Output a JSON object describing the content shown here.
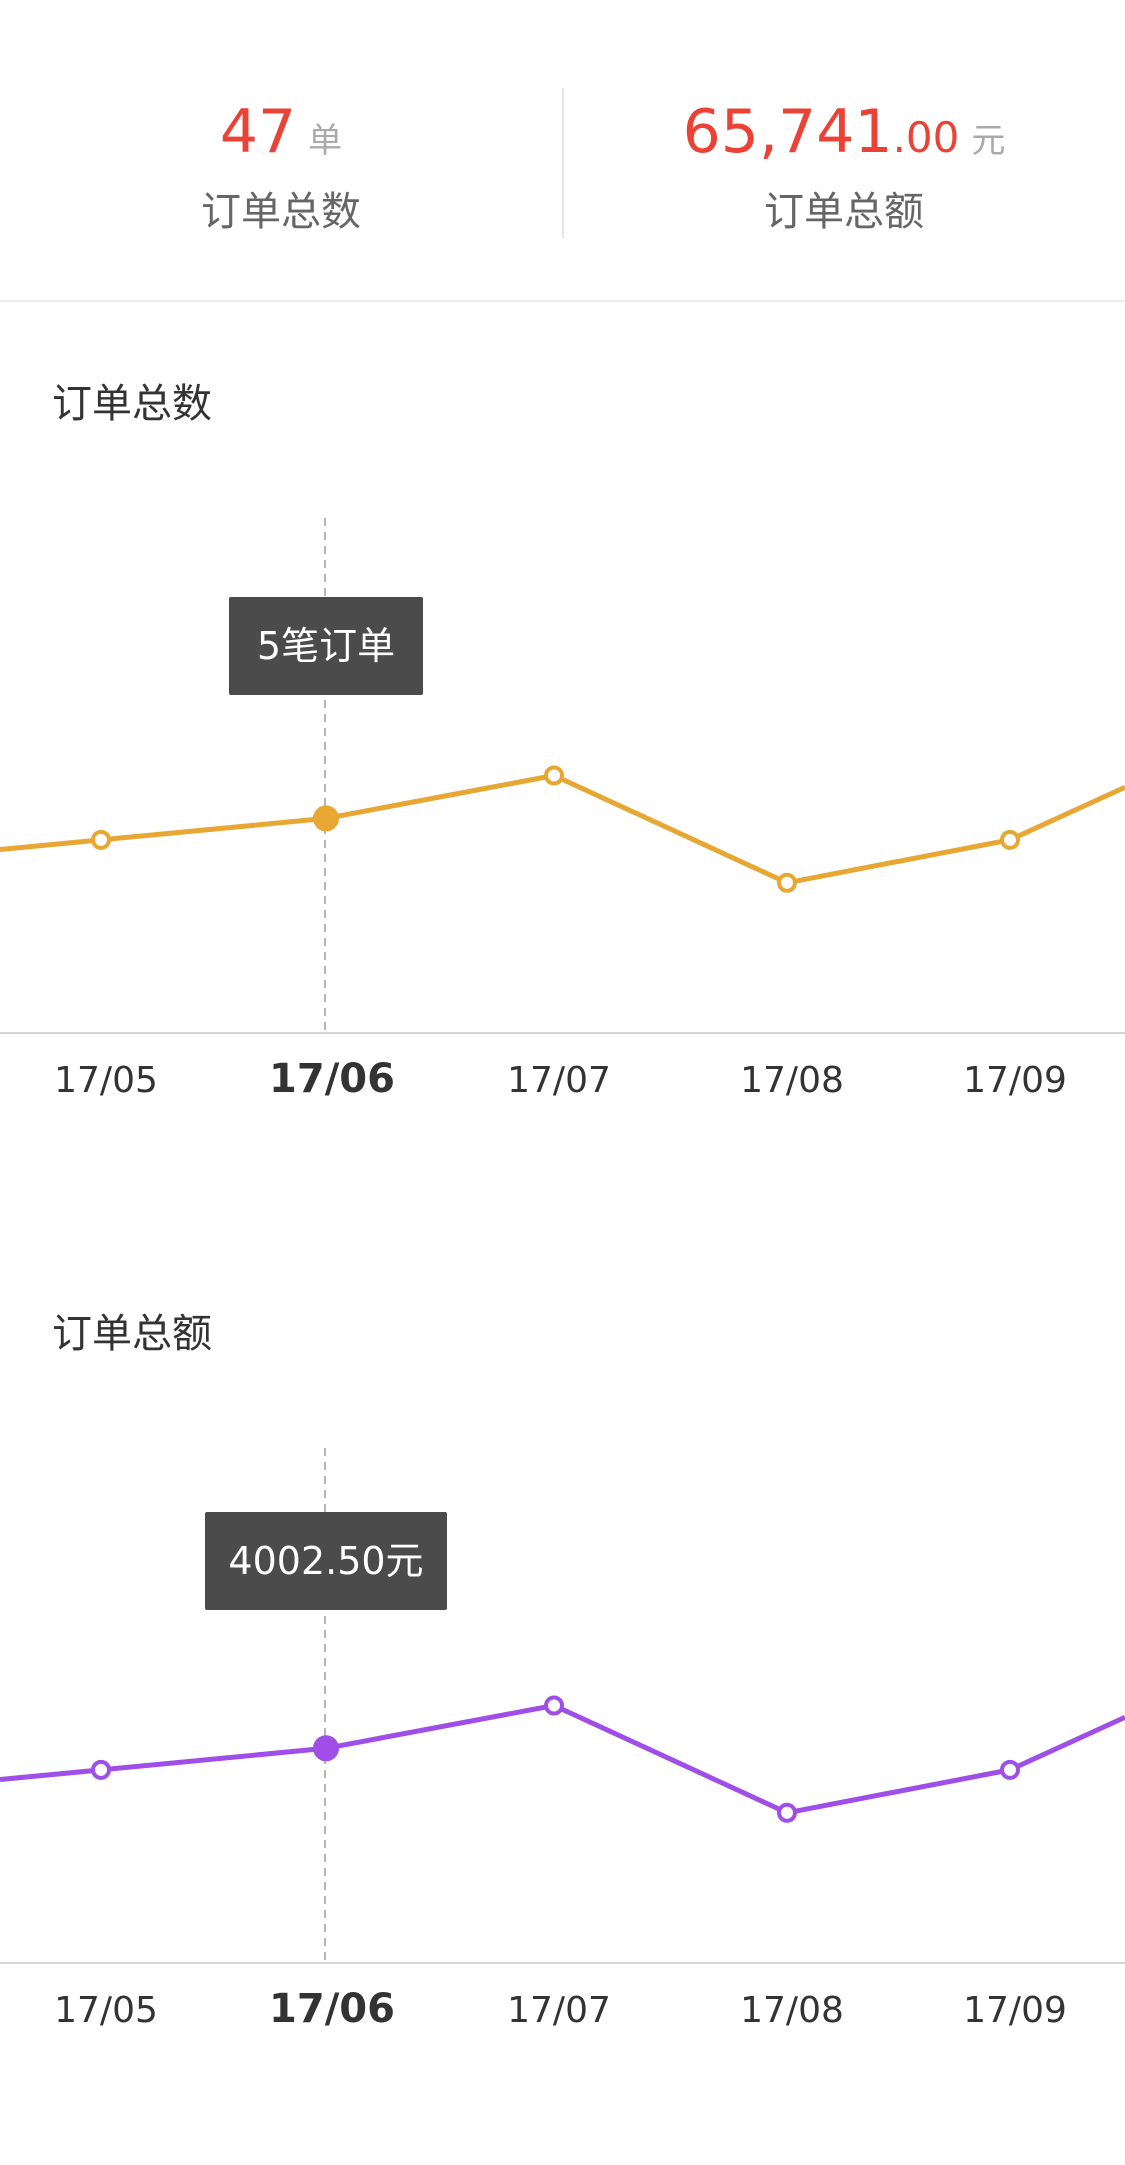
{
  "summary": {
    "orders": {
      "value": "47",
      "unit": "单",
      "label": "订单总数"
    },
    "amount": {
      "integer": "65,741",
      "decimal": ".00",
      "unit": "元",
      "label": "订单总额"
    }
  },
  "colors": {
    "highlight_red": "#ea4335",
    "orders_line": "#e8a732",
    "amount_line": "#a04ee8"
  },
  "charts": {
    "orders": {
      "title": "订单总数",
      "tooltip": "5笔订单"
    },
    "amount": {
      "title": "订单总额",
      "tooltip": "4002.50元"
    }
  },
  "chart_data": [
    {
      "type": "line",
      "title": "订单总数",
      "categories": [
        "17/05",
        "17/06",
        "17/07",
        "17/08",
        "17/09"
      ],
      "selected_category": "17/06",
      "series": [
        {
          "values": [
            4.5,
            5,
            6,
            3.5,
            4.5
          ]
        }
      ],
      "ylim": [
        0,
        12
      ],
      "grid": false,
      "tooltip": "5笔订单"
    },
    {
      "type": "line",
      "title": "订单总额",
      "categories": [
        "17/05",
        "17/06",
        "17/07",
        "17/08",
        "17/09"
      ],
      "selected_category": "17/06",
      "series": [
        {
          "values": [
            3600,
            4002.5,
            4800,
            2800,
            3600
          ]
        }
      ],
      "ylim": [
        0,
        9600
      ],
      "grid": false,
      "tooltip": "4002.50元"
    }
  ]
}
